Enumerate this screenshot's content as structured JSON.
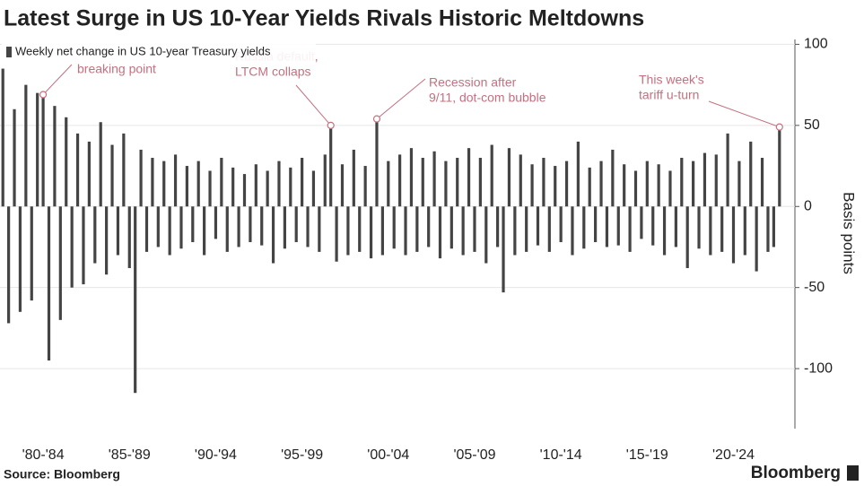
{
  "chart_data": {
    "type": "bar",
    "title": "Latest Surge in US 10-Year Yields Rivals Historic Meltdowns",
    "legend": "Weekly net change in US 10-year Treasury yields",
    "y_axis_label": "Basis points",
    "source": "Source: Bloomberg",
    "brand": "Bloomberg",
    "color": "#444444",
    "annotation_color": "#c4707f",
    "grid": true,
    "ylim": [
      -137,
      103
    ],
    "yticks": [
      -100,
      -50,
      0,
      50,
      100
    ],
    "annotations": [
      {
        "lines": [
          "breaking point"
        ]
      },
      {
        "lines": [
          "Russia default,",
          "LTCM collaps"
        ]
      },
      {
        "lines": [
          "Recession after",
          "9/11, dot-com bubble"
        ]
      },
      {
        "lines": [
          "This week's",
          "tariff u-turn"
        ]
      }
    ],
    "categories": [
      null,
      null,
      null,
      null,
      null,
      null,
      null,
      "'80-'84",
      null,
      null,
      null,
      null,
      null,
      null,
      null,
      null,
      null,
      null,
      null,
      null,
      null,
      null,
      "'85-'89",
      null,
      null,
      null,
      null,
      null,
      null,
      null,
      null,
      null,
      null,
      null,
      null,
      null,
      null,
      "'90-'94",
      null,
      null,
      null,
      null,
      null,
      null,
      null,
      null,
      null,
      null,
      null,
      null,
      null,
      null,
      "'95-'99",
      null,
      null,
      null,
      null,
      null,
      null,
      null,
      null,
      null,
      null,
      null,
      null,
      null,
      null,
      "'00-'04",
      null,
      null,
      null,
      null,
      null,
      null,
      null,
      null,
      null,
      null,
      null,
      null,
      null,
      null,
      "'05-'09",
      null,
      null,
      null,
      null,
      null,
      null,
      null,
      null,
      null,
      null,
      null,
      null,
      null,
      null,
      "'10-'14",
      null,
      null,
      null,
      null,
      null,
      null,
      null,
      null,
      null,
      null,
      null,
      null,
      null,
      null,
      "'15-'19",
      null,
      null,
      null,
      null,
      null,
      null,
      null,
      null,
      null,
      null,
      null,
      null,
      null,
      null,
      "'20-'24",
      null,
      null,
      null,
      null,
      null,
      null,
      null,
      null
    ],
    "values": [
      85,
      -72,
      60,
      -65,
      75,
      -58,
      70,
      69,
      -95,
      62,
      -70,
      55,
      -50,
      45,
      -48,
      40,
      -35,
      52,
      -42,
      38,
      -30,
      45,
      -38,
      -115,
      35,
      -28,
      30,
      -25,
      28,
      -30,
      32,
      -26,
      25,
      -22,
      28,
      -30,
      22,
      -20,
      30,
      -28,
      24,
      -25,
      20,
      -22,
      26,
      -24,
      22,
      -35,
      28,
      -26,
      24,
      -22,
      30,
      -25,
      22,
      -28,
      32,
      50,
      -34,
      26,
      -30,
      35,
      -28,
      25,
      -32,
      54,
      -30,
      28,
      -26,
      32,
      -30,
      36,
      -28,
      30,
      -25,
      34,
      -32,
      28,
      -26,
      30,
      -30,
      36,
      -28,
      30,
      -35,
      38,
      -25,
      -53,
      36,
      -30,
      32,
      -28,
      26,
      -24,
      30,
      -28,
      25,
      -22,
      28,
      -30,
      40,
      -26,
      24,
      -22,
      28,
      -25,
      35,
      -24,
      26,
      -28,
      22,
      -20,
      28,
      -24,
      26,
      -30,
      22,
      -25,
      30,
      -38,
      28,
      -26,
      33,
      -30,
      32,
      -28,
      45,
      -35,
      28,
      -30,
      40,
      -40,
      30,
      -28,
      -25,
      49
    ]
  }
}
